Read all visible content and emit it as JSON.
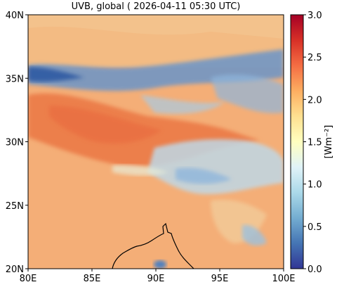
{
  "title": "UVB, global ( 2026-04-11 05:30 UTC)",
  "map": {
    "lon_range": [
      80,
      100
    ],
    "lat_range": [
      20,
      40
    ],
    "x_ticks": [
      {
        "value": 80,
        "label": "80E"
      },
      {
        "value": 85,
        "label": "85E"
      },
      {
        "value": 90,
        "label": "90E"
      },
      {
        "value": 95,
        "label": "95E"
      },
      {
        "value": 100,
        "label": "100E"
      }
    ],
    "y_ticks": [
      {
        "value": 20,
        "label": "20N"
      },
      {
        "value": 25,
        "label": "25N"
      },
      {
        "value": 30,
        "label": "30N"
      },
      {
        "value": 35,
        "label": "35N"
      },
      {
        "value": 40,
        "label": "40N"
      }
    ],
    "field_description_colors": {
      "north_band": "#f3b57a",
      "high_uvb": "#ea7b48",
      "low_uvb_clouds": "#4f80bf",
      "plain": "#f4ae77"
    }
  },
  "colorbar": {
    "label": "[Wm⁻²]",
    "range": [
      0.0,
      3.0
    ],
    "ticks": [
      "0.0",
      "0.5",
      "1.0",
      "1.5",
      "2.0",
      "2.5",
      "3.0"
    ],
    "colormap": [
      "#313695",
      "#4575b4",
      "#74add1",
      "#abd9e9",
      "#e0f3f8",
      "#ffffbf",
      "#fee090",
      "#fdae61",
      "#f46d43",
      "#d73027",
      "#a50026"
    ]
  }
}
